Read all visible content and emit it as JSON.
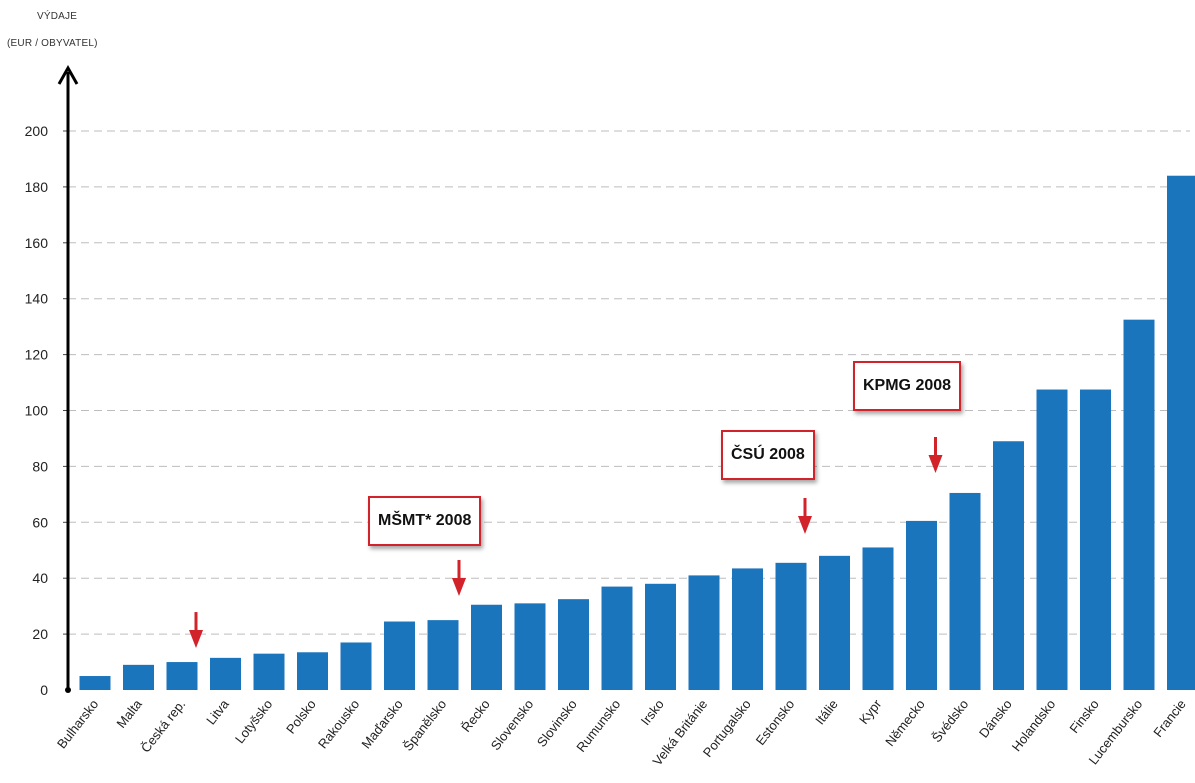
{
  "chart_data": {
    "type": "bar",
    "ylabel_line1": "VÝDAJE",
    "ylabel_line2": "(EUR / OBYVATEL)",
    "ylim": [
      0,
      200
    ],
    "yticks": [
      0,
      20,
      40,
      60,
      80,
      100,
      120,
      140,
      160,
      180,
      200
    ],
    "grid": true,
    "bar_color": "#1b75bc",
    "categories": [
      "Bulharsko",
      "Malta",
      "Česká rep.",
      "Litva",
      "Lotyšsko",
      "Polsko",
      "Rakousko",
      "Maďarsko",
      "Španělsko",
      "Řecko",
      "Slovensko",
      "Slovinsko",
      "Rumunsko",
      "Irsko",
      "Velká Británie",
      "Portugalsko",
      "Estonsko",
      "Itálie",
      "Kypr",
      "Německo",
      "Švédsko",
      "Dánsko",
      "Holandsko",
      "Finsko",
      "Lucembursko",
      "Francie"
    ],
    "values": [
      5,
      9,
      10,
      11.5,
      13,
      13.5,
      17,
      24.5,
      25,
      30.5,
      31,
      32.5,
      37,
      38,
      41,
      43.5,
      45.5,
      48,
      51,
      60.5,
      70.5,
      89,
      107.5,
      107.5,
      132.5,
      184
    ],
    "annotations": [
      {
        "label": "MŠMT* 2008",
        "category": "Řecko",
        "arrow_category": "Španělsko"
      },
      {
        "label": "ČSÚ 2008",
        "category": "Estonsko",
        "arrow_category": "Estonsko"
      },
      {
        "label": "KPMG 2008",
        "category": "Švédsko",
        "arrow_category": "Německo"
      }
    ],
    "arrow_markers": [
      "Česká rep."
    ],
    "annotation_color": "#d2232a"
  }
}
